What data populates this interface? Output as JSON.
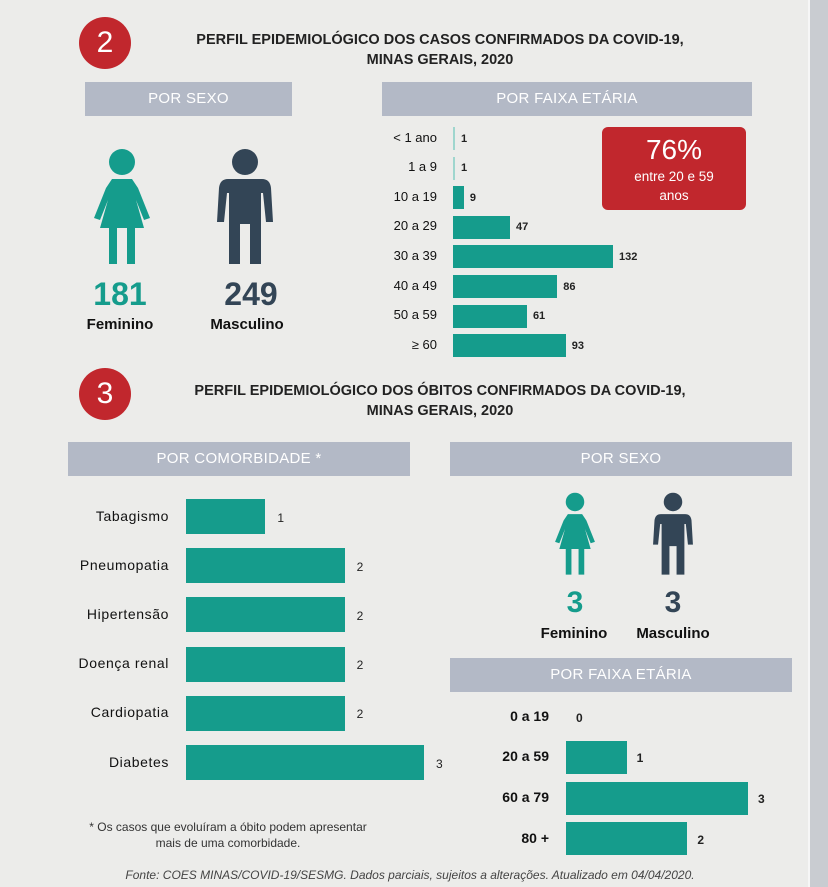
{
  "section2": {
    "number": "2",
    "title_line1": "PERFIL EPIDEMIOLÓGICO DOS CASOS CONFIRMADOS DA COVID-19,",
    "title_line2": "MINAS GERAIS, 2020",
    "sex_header": "POR SEXO",
    "age_header": "POR FAIXA ETÁRIA",
    "female_count": "181",
    "female_label": "Feminino",
    "male_count": "249",
    "male_label": "Masculino",
    "callout_pct": "76%",
    "callout_line1": "entre 20 e 59",
    "callout_line2": "anos"
  },
  "section3": {
    "number": "3",
    "title_line1": "PERFIL EPIDEMIOLÓGICO DOS ÓBITOS CONFIRMADOS DA COVID-19,",
    "title_line2": "MINAS GERAIS, 2020",
    "comorb_header": "POR COMORBIDADE *",
    "sex_header": "POR SEXO",
    "age_header": "POR FAIXA ETÁRIA",
    "female_count": "3",
    "female_label": "Feminino",
    "male_count": "3",
    "male_label": "Masculino",
    "note_line1": "* Os casos que evoluíram a óbito podem apresentar",
    "note_line2": "mais de uma comorbidade."
  },
  "source": "Fonte: COES MINAS/COVID-19/SESMG. Dados parciais, sujeitos a alterações. Atualizado em 04/04/2020.",
  "colors": {
    "bar": "#159c8c",
    "female": "#159c8c",
    "male": "#334556",
    "accent": "#c1272d",
    "header": "#b3b9c6"
  },
  "chart_data": [
    {
      "type": "bar",
      "orientation": "horizontal",
      "title": "POR FAIXA ETÁRIA",
      "categories": [
        "< 1 ano",
        "1 a 9",
        "10 a 19",
        "20 a 29",
        "30 a 39",
        "40 a 49",
        "50 a 59",
        "≥ 60"
      ],
      "values": [
        1,
        1,
        9,
        47,
        132,
        86,
        61,
        93
      ]
    },
    {
      "type": "bar",
      "orientation": "horizontal",
      "title": "POR COMORBIDADE *",
      "categories": [
        "Tabagismo",
        "Pneumopatia",
        "Hipertensão",
        "Doença renal",
        "Cardiopatia",
        "Diabetes"
      ],
      "values": [
        1,
        2,
        2,
        2,
        2,
        3
      ]
    },
    {
      "type": "bar",
      "orientation": "horizontal",
      "title": "POR FAIXA ETÁRIA",
      "categories": [
        "0 a 19",
        "20 a 59",
        "60 a 79",
        "80 +"
      ],
      "values": [
        0,
        1,
        3,
        2
      ]
    }
  ]
}
